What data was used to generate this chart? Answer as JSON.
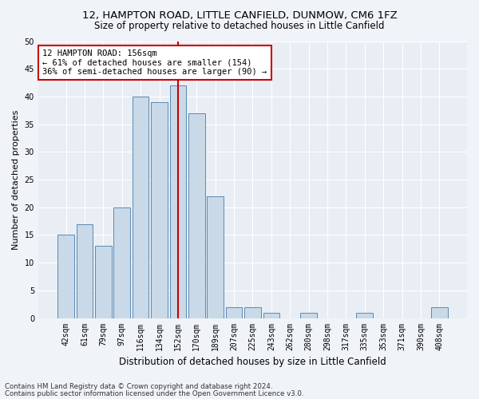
{
  "title1": "12, HAMPTON ROAD, LITTLE CANFIELD, DUNMOW, CM6 1FZ",
  "title2": "Size of property relative to detached houses in Little Canfield",
  "xlabel": "Distribution of detached houses by size in Little Canfield",
  "ylabel": "Number of detached properties",
  "bar_labels": [
    "42sqm",
    "61sqm",
    "79sqm",
    "97sqm",
    "116sqm",
    "134sqm",
    "152sqm",
    "170sqm",
    "189sqm",
    "207sqm",
    "225sqm",
    "243sqm",
    "262sqm",
    "280sqm",
    "298sqm",
    "317sqm",
    "335sqm",
    "353sqm",
    "371sqm",
    "390sqm",
    "408sqm"
  ],
  "bar_values": [
    15,
    17,
    13,
    20,
    40,
    39,
    42,
    37,
    22,
    2,
    2,
    1,
    0,
    1,
    0,
    0,
    1,
    0,
    0,
    0,
    2
  ],
  "bar_color": "#c9d9e8",
  "bar_edge_color": "#5a8ab5",
  "vline_x_index": 6,
  "vline_color": "#cc0000",
  "annotation_text": "12 HAMPTON ROAD: 156sqm\n← 61% of detached houses are smaller (154)\n36% of semi-detached houses are larger (90) →",
  "annotation_box_color": "#cc0000",
  "ylim": [
    0,
    50
  ],
  "yticks": [
    0,
    5,
    10,
    15,
    20,
    25,
    30,
    35,
    40,
    45,
    50
  ],
  "fig_bg_color": "#f0f4f8",
  "plot_bg_color": "#e8eef4",
  "footer1": "Contains HM Land Registry data © Crown copyright and database right 2024.",
  "footer2": "Contains public sector information licensed under the Open Government Licence v3.0.",
  "title1_fontsize": 9.5,
  "title2_fontsize": 8.5,
  "xlabel_fontsize": 8.5,
  "ylabel_fontsize": 8,
  "tick_fontsize": 7,
  "footer_fontsize": 6.2,
  "annot_fontsize": 7.5
}
